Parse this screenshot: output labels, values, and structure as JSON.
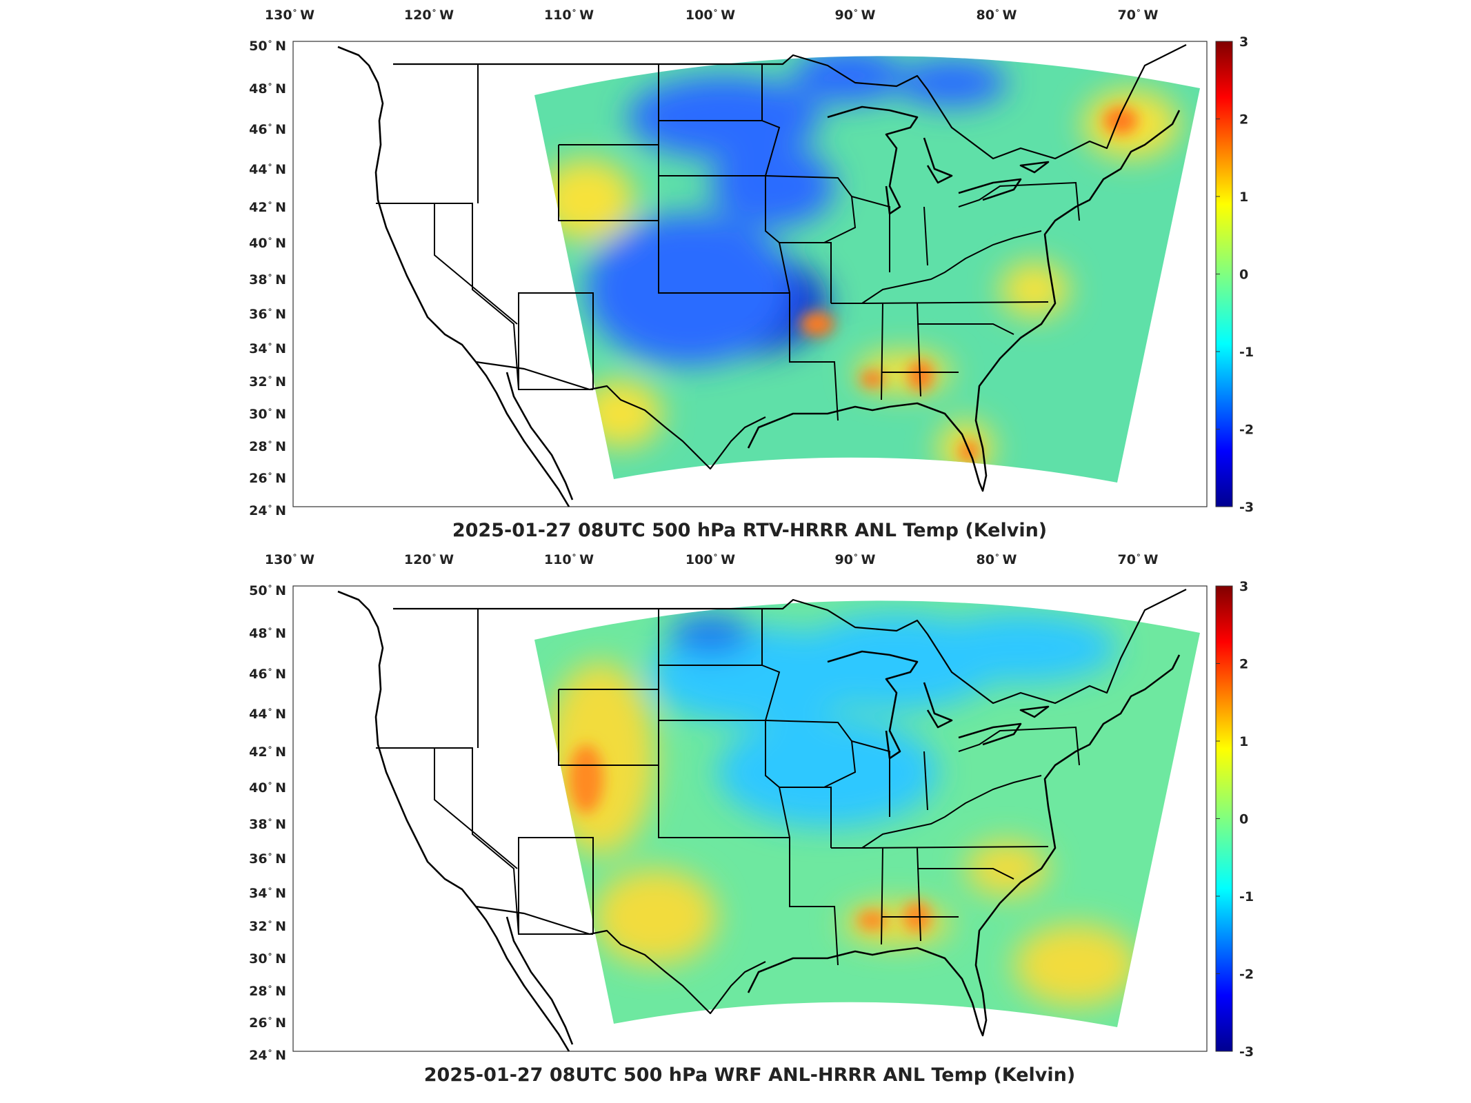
{
  "colormap": [
    "#00008f",
    "#0000ff",
    "#00ffff",
    "#ffff00",
    "#ff0000",
    "#800000"
  ],
  "panels": [
    {
      "title": "2025-01-27 08UTC 500 hPa RTV-HRRR ANL Temp (Kelvin)",
      "lon_labels": [
        "130",
        "120",
        "110",
        "100",
        "90",
        "80",
        "70"
      ],
      "lon_suffix": "W",
      "lat_labels": [
        "50",
        "48",
        "46",
        "44",
        "42",
        "40",
        "38",
        "36",
        "34",
        "32",
        "30",
        "28",
        "26",
        "24"
      ],
      "lat_suffix": "N",
      "colorbar": {
        "ticks": [
          "3",
          "2",
          "1",
          "0",
          "-1",
          "-2",
          "-3"
        ],
        "min": -3,
        "max": 3
      },
      "field_colors": {
        "base": "#5fe0a8",
        "cold": "#2a6cff",
        "deep_cold": "#1030d0",
        "warm": "#f7e23a",
        "hot": "#ff7a1a"
      }
    },
    {
      "title": "2025-01-27 08UTC 500 hPa WRF ANL-HRRR ANL Temp (Kelvin)",
      "lon_labels": [
        "130",
        "120",
        "110",
        "100",
        "90",
        "80",
        "70"
      ],
      "lon_suffix": "W",
      "lat_labels": [
        "50",
        "48",
        "46",
        "44",
        "42",
        "40",
        "38",
        "36",
        "34",
        "32",
        "30",
        "28",
        "26",
        "24"
      ],
      "lat_suffix": "N",
      "colorbar": {
        "ticks": [
          "3",
          "2",
          "1",
          "0",
          "-1",
          "-2",
          "-3"
        ],
        "min": -3,
        "max": 3
      },
      "field_colors": {
        "base": "#6ee8a0",
        "cold": "#2fc8ff",
        "deep_cold": "#1a7cf0",
        "warm": "#f2dc3c",
        "hot": "#ff8a20"
      }
    }
  ]
}
